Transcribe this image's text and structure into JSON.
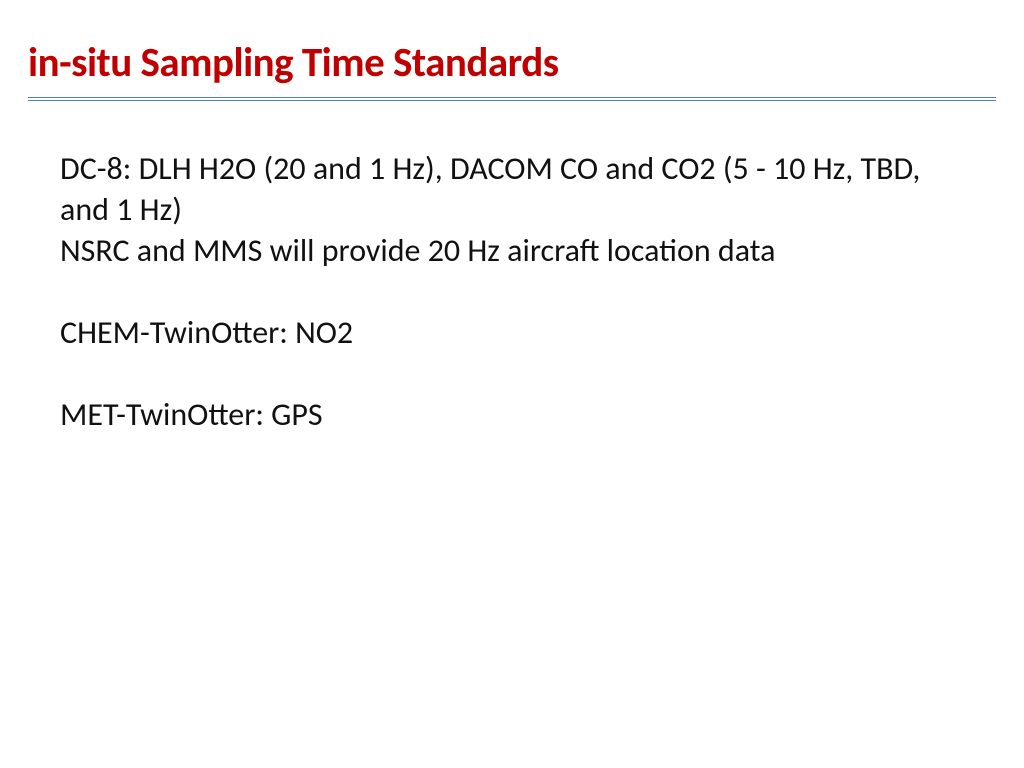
{
  "title": "in-situ Sampling Time Standards",
  "title_color": "#c00000",
  "rule_color": "#4f81bd",
  "body_text_color": "#111111",
  "background_color": "#ffffff",
  "title_fontsize": 41,
  "body_fontsize": 32,
  "paragraphs": [
    "DC-8: DLH H2O (20 and 1 Hz), DACOM CO and CO2 (5 - 10 Hz, TBD, and 1 Hz)",
    "NSRC and MMS will provide 20 Hz aircraft location data",
    "",
    "CHEM-TwinOtter: NO2",
    "",
    "MET-TwinOtter:  GPS"
  ]
}
